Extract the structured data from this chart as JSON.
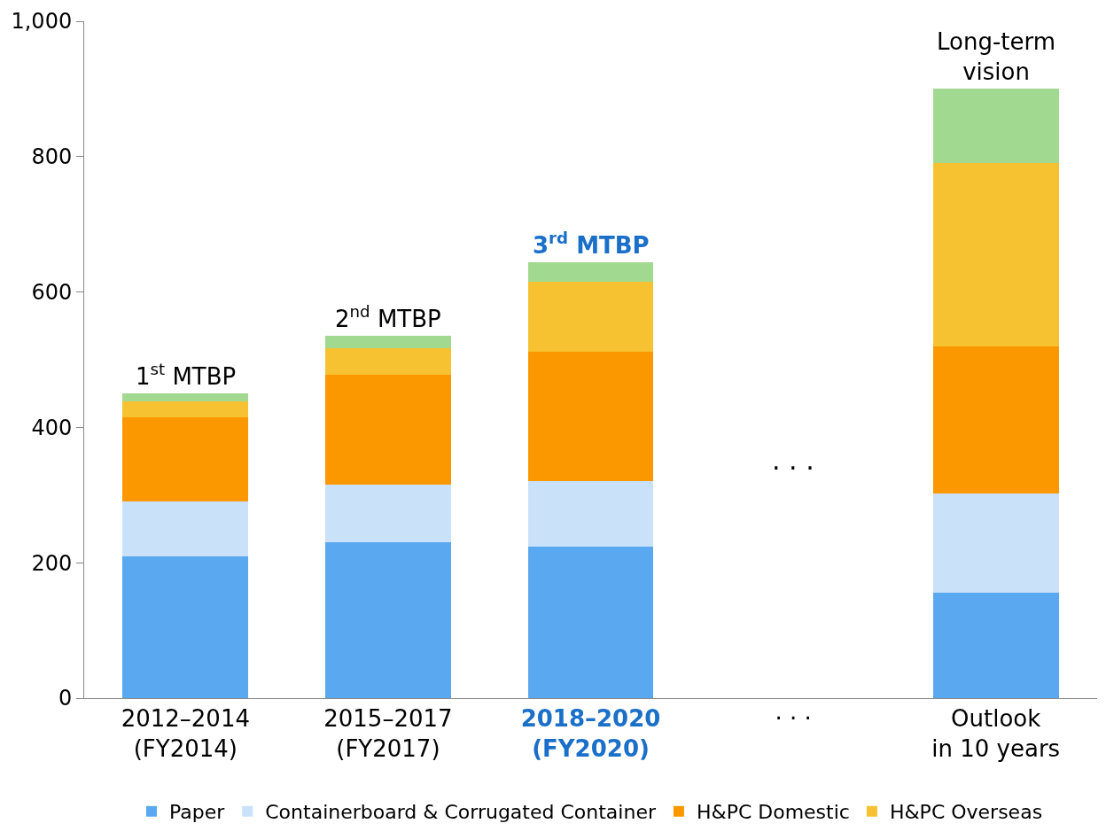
{
  "chart_data": {
    "type": "bar",
    "stacked": true,
    "categories": [
      "2012–2014\n(FY2014)",
      "2015–2017\n(FY2017)",
      "2018–2020\n(FY2020)",
      "· · ·",
      "Outlook\nin 10 years"
    ],
    "series": [
      {
        "name": "Paper",
        "color": "#5aa9f0",
        "values": [
          210,
          230,
          224,
          null,
          156
        ]
      },
      {
        "name": "Containerboard & Corrugated Container",
        "color": "#c9e2f9",
        "values": [
          80,
          86,
          97,
          null,
          146
        ]
      },
      {
        "name": "H&PC Domestic",
        "color": "#fb9800",
        "values": [
          125,
          162,
          191,
          null,
          218
        ]
      },
      {
        "name": "H&PC Overseas",
        "color": "#f6c232",
        "values": [
          23,
          39,
          103,
          null,
          271
        ]
      },
      {
        "color": "#a2d990",
        "values": [
          12,
          19,
          29,
          null,
          109
        ]
      }
    ],
    "ylim": [
      0,
      1000
    ],
    "yticks": [
      0,
      200,
      400,
      600,
      800,
      {
        "value": 1000,
        "label": "1,000"
      }
    ],
    "legend": "bottom",
    "annotations": [
      {
        "text": "1$^{st}$ MTBP",
        "x": "2012–2014\n(FY2014)",
        "y": 450
      },
      {
        "text": "2$^{nd}$ MTBP",
        "x": "2015–2017\n(FY2017)",
        "y": 536
      },
      {
        "text": "3$^{rd}$ MTBP",
        "x": "2018–2020\n(FY2020)",
        "y": 644
      },
      "· · ·",
      {
        "text": "Long-term\nvision",
        "x": "Outlook\nin 10 years",
        "y": 900
      }
    ]
  }
}
